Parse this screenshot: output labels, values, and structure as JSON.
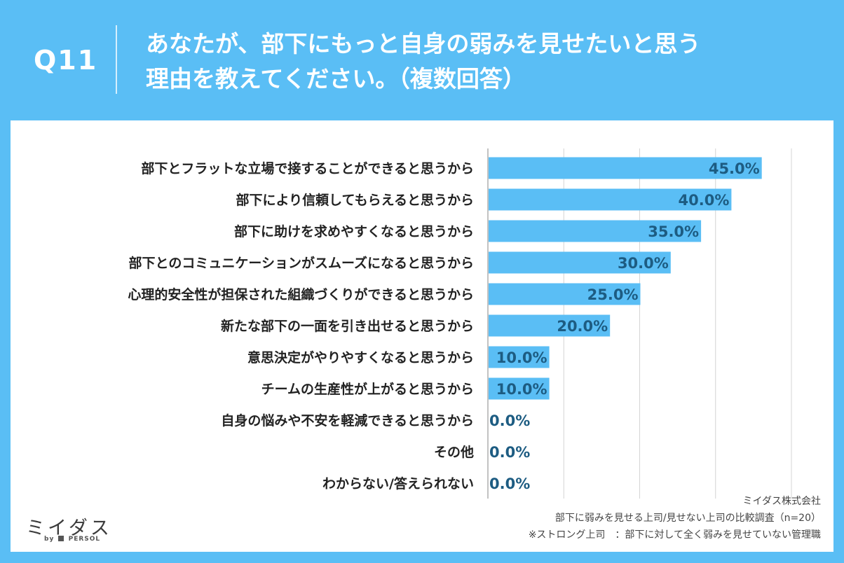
{
  "header": {
    "question_no": "Q11",
    "title_line1": "あなたが、部下にもっと自身の弱みを見せたいと思う",
    "title_line2": "理由を教えてください。（複数回答）"
  },
  "chart_data": {
    "type": "bar",
    "orientation": "horizontal",
    "categories": [
      "部下とフラットな立場で接することができると思うから",
      "部下により信頼してもらえると思うから",
      "部下に助けを求めやすくなると思うから",
      "部下とのコミュニケーションがスムーズになると思うから",
      "心理的安全性が担保された組織づくりができると思うから",
      "新たな部下の一面を引き出せると思うから",
      "意思決定がやりやすくなると思うから",
      "チームの生産性が上がると思うから",
      "自身の悩みや不安を軽減できると思うから",
      "その他",
      "わからない/答えられない"
    ],
    "values": [
      45.0,
      40.0,
      35.0,
      30.0,
      25.0,
      20.0,
      10.0,
      10.0,
      0.0,
      0.0,
      0.0
    ],
    "value_labels": [
      "45.0%",
      "40.0%",
      "35.0%",
      "30.0%",
      "25.0%",
      "20.0%",
      "10.0%",
      "10.0%",
      "0.0%",
      "0.0%",
      "0.0%"
    ],
    "xlim": [
      0,
      50
    ],
    "gridlines": [
      0,
      12.5,
      25,
      37.5,
      50
    ],
    "bar_color": "#5ABEF5",
    "label_color": "#1D5C82"
  },
  "logo": {
    "main": "ミイダス",
    "by": "by",
    "brand": "PERSOL"
  },
  "footnote": {
    "line1": "ミイダス株式会社",
    "line2": "部下に弱みを見せる上司/見せない上司の比較調査（n=20）",
    "line3": "※ストロング上司　：部下に対して全く弱みを見せていない管理職"
  }
}
